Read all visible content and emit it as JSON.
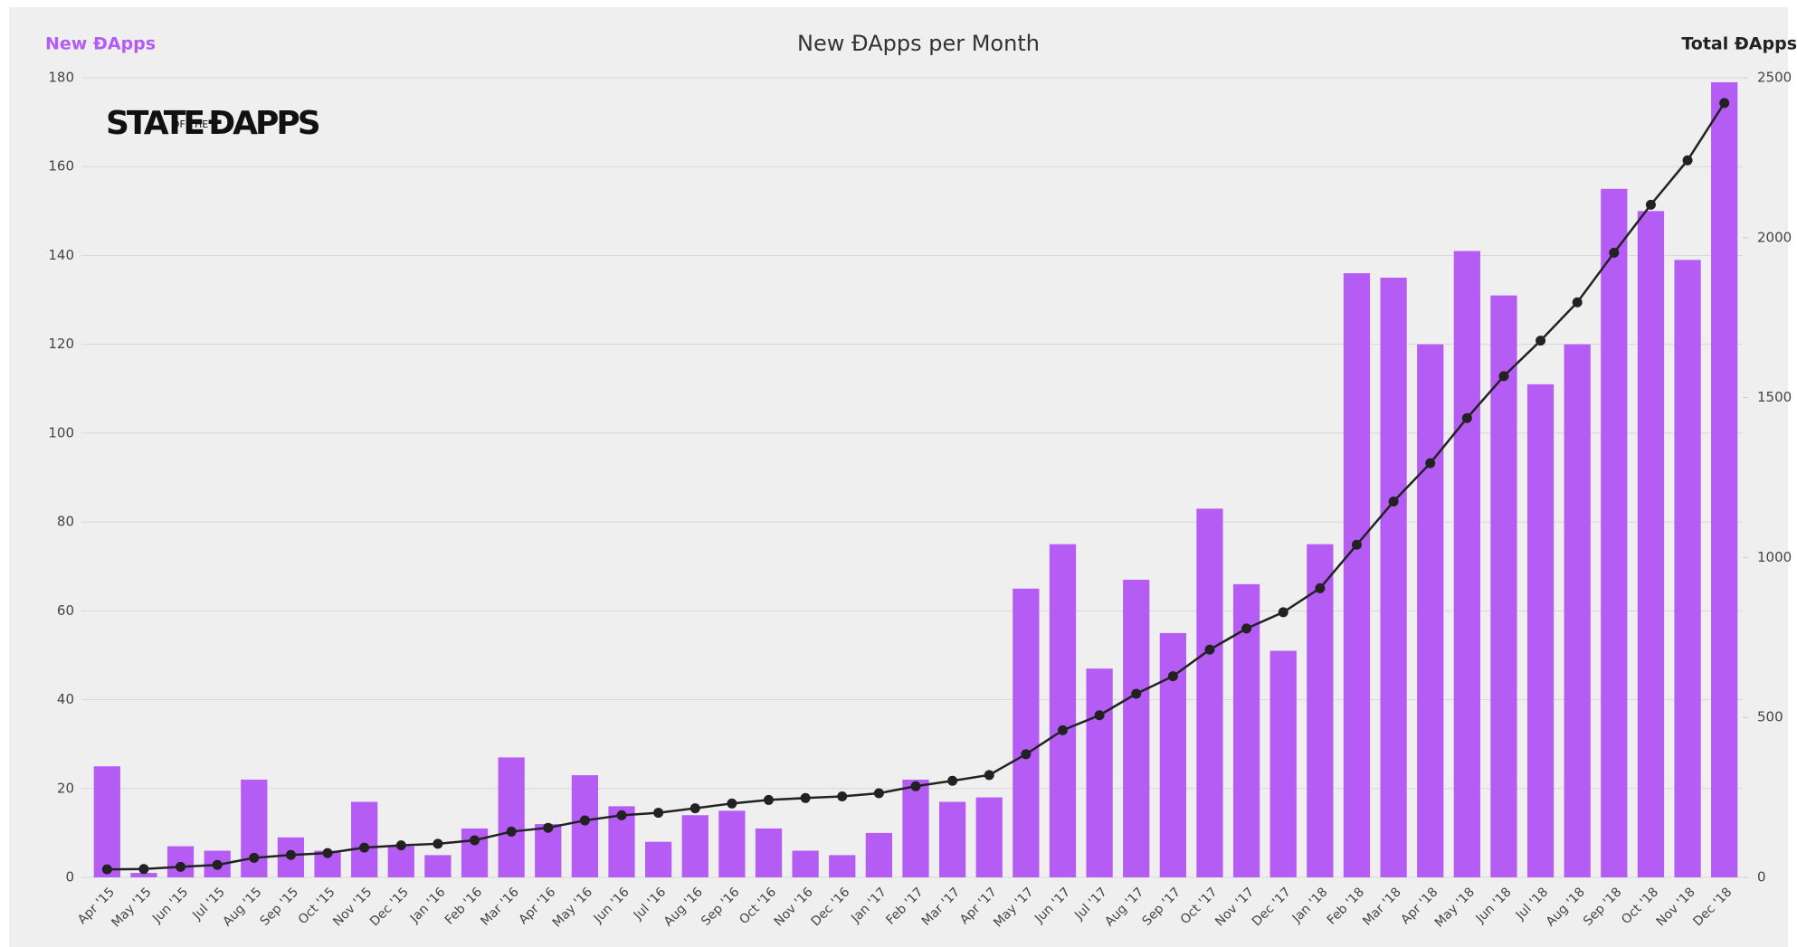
{
  "chart_data": {
    "type": "bar_line",
    "title": "New ĐApps per Month",
    "y_label": "New ĐApps",
    "y2_label": "Total ĐApps",
    "logo": {
      "line1": "STATE",
      "small": "OF THE",
      "line2": "ĐAPPS"
    },
    "categories": [
      "Apr '15",
      "May '15",
      "Jun '15",
      "Jul '15",
      "Aug '15",
      "Sep '15",
      "Oct '15",
      "Nov '15",
      "Dec '15",
      "Jan '16",
      "Feb '16",
      "Mar '16",
      "Apr '16",
      "May '16",
      "Jun '16",
      "Jul '16",
      "Aug '16",
      "Sep '16",
      "Oct '16",
      "Nov '16",
      "Dec '16",
      "Jan '17",
      "Feb '17",
      "Mar '17",
      "Apr '17",
      "May '17",
      "Jun '17",
      "Jul '17",
      "Aug '17",
      "Sep '17",
      "Oct '17",
      "Nov '17",
      "Dec '17",
      "Jan '18",
      "Feb '18",
      "Mar '18",
      "Apr '18",
      "May '18",
      "Jun '18",
      "Jul '18",
      "Aug '18",
      "Sep '18",
      "Oct '18",
      "Nov '18",
      "Dec '18"
    ],
    "series": [
      {
        "name": "New ĐApps",
        "color": "#b45cf4",
        "kind": "bar",
        "values": [
          25,
          1,
          7,
          6,
          22,
          9,
          6,
          17,
          7,
          5,
          11,
          27,
          12,
          23,
          16,
          8,
          14,
          15,
          11,
          6,
          5,
          10,
          22,
          17,
          18,
          65,
          75,
          47,
          67,
          55,
          83,
          66,
          51,
          75,
          136,
          135,
          120,
          141,
          131,
          111,
          120,
          155,
          150,
          139,
          179
        ]
      },
      {
        "name": "Total ĐApps",
        "color": "#222222",
        "kind": "line",
        "axis": "y2",
        "values": [
          25,
          26,
          33,
          39,
          61,
          70,
          76,
          93,
          100,
          105,
          116,
          143,
          155,
          178,
          194,
          202,
          216,
          231,
          242,
          248,
          253,
          263,
          285,
          302,
          320,
          385,
          460,
          507,
          574,
          629,
          712,
          778,
          829,
          904,
          1040,
          1175,
          1295,
          1436,
          1567,
          1678,
          1798,
          1953,
          2103,
          2242,
          2421
        ]
      }
    ],
    "ylim": [
      0,
      180
    ],
    "yticks": [
      0,
      20,
      40,
      60,
      80,
      100,
      120,
      140,
      160,
      180
    ],
    "y2lim": [
      0,
      2500
    ],
    "y2ticks": [
      0,
      500,
      1000,
      1500,
      2000,
      2500
    ],
    "grid": true
  }
}
